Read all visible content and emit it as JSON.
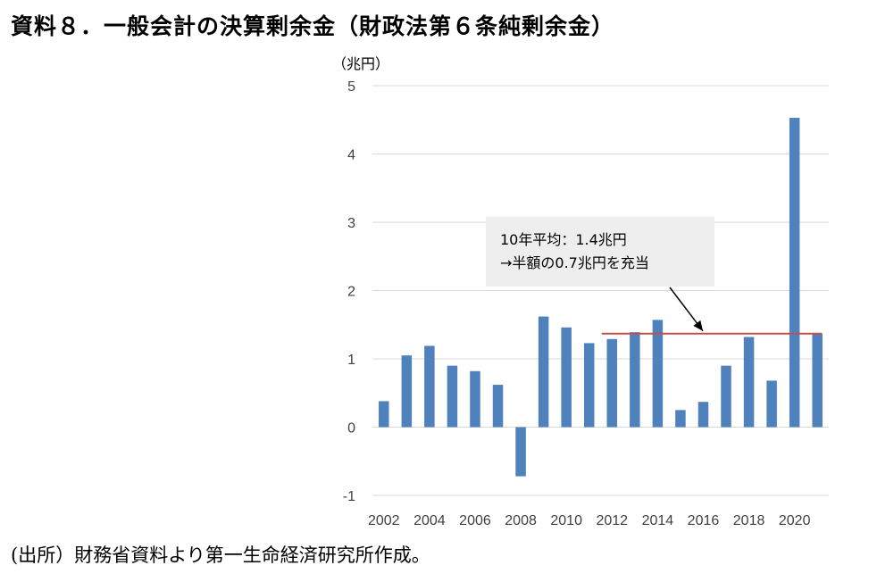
{
  "title": "資料８．一般会計の決算剰余金（財政法第６条純剰余金）",
  "source": "(出所）財務省資料より第一生命経済研究所作成。",
  "chart_data": {
    "type": "bar",
    "unit_label": "（兆円）",
    "categories": [
      "2002",
      "2003",
      "2004",
      "2005",
      "2006",
      "2007",
      "2008",
      "2009",
      "2010",
      "2011",
      "2012",
      "2013",
      "2014",
      "2015",
      "2016",
      "2017",
      "2018",
      "2019",
      "2020",
      "2021"
    ],
    "x_tick_labels": [
      "2002",
      "2004",
      "2006",
      "2008",
      "2010",
      "2012",
      "2014",
      "2016",
      "2018",
      "2020"
    ],
    "values": [
      0.38,
      1.05,
      1.19,
      0.9,
      0.82,
      0.62,
      -0.72,
      1.62,
      1.46,
      1.23,
      1.29,
      1.39,
      1.57,
      0.25,
      0.37,
      0.9,
      1.32,
      0.68,
      4.53,
      1.37
    ],
    "ylim": [
      -1,
      5
    ],
    "yticks": [
      "5",
      "4",
      "3",
      "2",
      "1",
      "0",
      "-1"
    ],
    "grid": true,
    "bar_color": "#4f81bd",
    "reference_line": {
      "value": 1.37,
      "from_category": "2012",
      "to_category": "2021",
      "color": "#c0504d"
    },
    "annotation": {
      "lines": [
        "10年平均：1.4兆円",
        "→半額の0.7兆円を充当"
      ],
      "background": "#eeeeee"
    }
  }
}
